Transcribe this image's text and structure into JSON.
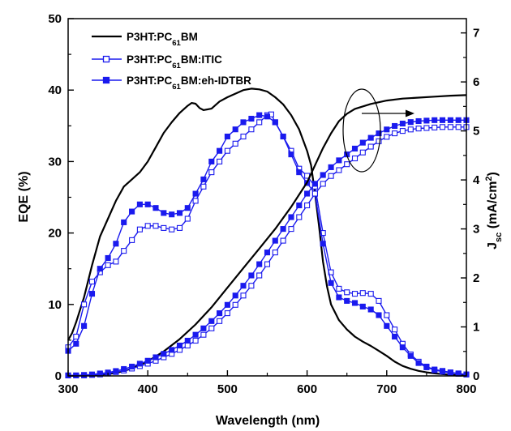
{
  "chart_data": {
    "type": "line",
    "title": "",
    "xlabel": "Wavelength (nm)",
    "ylabel_left": {
      "main": "EQE (%)"
    },
    "ylabel_right": {
      "main": "J",
      "sub": "sc",
      "rest": " (mA/cm",
      "sup": "2",
      "close": ")"
    },
    "xlim": [
      300,
      800
    ],
    "ylim_left": [
      0,
      50
    ],
    "ylim_right": [
      0,
      7.2916
    ],
    "x_ticks": [
      300,
      400,
      500,
      600,
      700,
      800
    ],
    "y_left_ticks": [
      0,
      10,
      20,
      30,
      40,
      50
    ],
    "y_right_ticks": [
      0,
      1,
      2,
      3,
      4,
      5,
      6,
      7
    ],
    "grid": false,
    "legend_position": "top-left",
    "annotations": [
      "ellipse around J curves near 660 nm with arrow pointing right"
    ],
    "legend": [
      {
        "base": "P3HT:PC",
        "sub": "61",
        "rest": "BM"
      },
      {
        "base": "P3HT:PC",
        "sub": "61",
        "rest": "BM:ITIC"
      },
      {
        "base": "P3HT:PC",
        "sub": "61",
        "rest": "BM:eh-IDTBR"
      }
    ],
    "series": [
      {
        "axis": "left",
        "color": "#000000",
        "marker": "none",
        "points": [
          [
            300,
            5.0
          ],
          [
            305,
            6.0
          ],
          [
            310,
            7.5
          ],
          [
            320,
            11.0
          ],
          [
            330,
            15.5
          ],
          [
            340,
            19.5
          ],
          [
            350,
            22.0
          ],
          [
            360,
            24.5
          ],
          [
            370,
            26.5
          ],
          [
            380,
            27.5
          ],
          [
            390,
            28.5
          ],
          [
            400,
            30.0
          ],
          [
            410,
            32.0
          ],
          [
            420,
            34.0
          ],
          [
            430,
            35.5
          ],
          [
            440,
            36.8
          ],
          [
            450,
            37.8
          ],
          [
            455,
            38.2
          ],
          [
            460,
            38.1
          ],
          [
            465,
            37.5
          ],
          [
            470,
            37.2
          ],
          [
            480,
            37.4
          ],
          [
            490,
            38.4
          ],
          [
            500,
            39.0
          ],
          [
            510,
            39.5
          ],
          [
            520,
            40.0
          ],
          [
            530,
            40.2
          ],
          [
            540,
            40.1
          ],
          [
            550,
            39.8
          ],
          [
            560,
            39.0
          ],
          [
            570,
            38.0
          ],
          [
            580,
            36.5
          ],
          [
            590,
            34.5
          ],
          [
            600,
            31.5
          ],
          [
            605,
            29.5
          ],
          [
            610,
            25.5
          ],
          [
            615,
            21.0
          ],
          [
            620,
            16.0
          ],
          [
            625,
            12.5
          ],
          [
            630,
            10.0
          ],
          [
            640,
            7.8
          ],
          [
            650,
            6.5
          ],
          [
            660,
            5.5
          ],
          [
            670,
            4.8
          ],
          [
            680,
            4.2
          ],
          [
            690,
            3.5
          ],
          [
            700,
            2.8
          ],
          [
            710,
            2.0
          ],
          [
            720,
            1.4
          ],
          [
            730,
            1.0
          ],
          [
            740,
            0.7
          ],
          [
            750,
            0.5
          ],
          [
            760,
            0.35
          ],
          [
            770,
            0.25
          ],
          [
            780,
            0.15
          ],
          [
            790,
            0.1
          ],
          [
            800,
            0.05
          ]
        ]
      },
      {
        "axis": "left",
        "color": "#1a1aee",
        "marker": "open-square",
        "points": [
          [
            300,
            4.0
          ],
          [
            310,
            5.5
          ],
          [
            320,
            10.0
          ],
          [
            330,
            13.2
          ],
          [
            340,
            14.5
          ],
          [
            350,
            15.5
          ],
          [
            360,
            16.0
          ],
          [
            370,
            17.5
          ],
          [
            380,
            19.0
          ],
          [
            390,
            20.5
          ],
          [
            400,
            21.0
          ],
          [
            410,
            21.0
          ],
          [
            420,
            20.7
          ],
          [
            430,
            20.5
          ],
          [
            440,
            20.7
          ],
          [
            450,
            22.0
          ],
          [
            460,
            24.5
          ],
          [
            470,
            26.5
          ],
          [
            480,
            28.5
          ],
          [
            490,
            30.0
          ],
          [
            500,
            31.5
          ],
          [
            510,
            32.5
          ],
          [
            520,
            33.5
          ],
          [
            530,
            34.5
          ],
          [
            540,
            35.5
          ],
          [
            550,
            36.5
          ],
          [
            555,
            36.6
          ],
          [
            560,
            35.5
          ],
          [
            570,
            33.5
          ],
          [
            580,
            31.5
          ],
          [
            590,
            29.0
          ],
          [
            600,
            28.0
          ],
          [
            610,
            26.5
          ],
          [
            620,
            20.0
          ],
          [
            630,
            14.5
          ],
          [
            640,
            12.2
          ],
          [
            650,
            11.7
          ],
          [
            660,
            11.5
          ],
          [
            670,
            11.6
          ],
          [
            680,
            11.5
          ],
          [
            690,
            10.5
          ],
          [
            700,
            8.5
          ],
          [
            710,
            6.5
          ],
          [
            720,
            4.5
          ],
          [
            730,
            3.0
          ],
          [
            740,
            2.0
          ],
          [
            750,
            1.3
          ],
          [
            760,
            0.9
          ],
          [
            770,
            0.7
          ],
          [
            780,
            0.5
          ],
          [
            790,
            0.35
          ],
          [
            800,
            0.2
          ]
        ]
      },
      {
        "axis": "left",
        "color": "#1a1aee",
        "marker": "filled-square",
        "points": [
          [
            300,
            3.5
          ],
          [
            310,
            4.5
          ],
          [
            320,
            7.0
          ],
          [
            330,
            11.5
          ],
          [
            340,
            15.0
          ],
          [
            350,
            16.5
          ],
          [
            360,
            18.5
          ],
          [
            370,
            21.5
          ],
          [
            380,
            23.0
          ],
          [
            390,
            24.0
          ],
          [
            400,
            24.0
          ],
          [
            410,
            23.5
          ],
          [
            420,
            22.8
          ],
          [
            430,
            22.6
          ],
          [
            440,
            22.8
          ],
          [
            450,
            23.5
          ],
          [
            460,
            25.5
          ],
          [
            470,
            27.5
          ],
          [
            480,
            30.0
          ],
          [
            490,
            31.5
          ],
          [
            500,
            33.5
          ],
          [
            510,
            34.5
          ],
          [
            520,
            35.5
          ],
          [
            530,
            36.0
          ],
          [
            540,
            36.5
          ],
          [
            550,
            36.3
          ],
          [
            560,
            35.5
          ],
          [
            570,
            33.5
          ],
          [
            580,
            31.0
          ],
          [
            590,
            28.5
          ],
          [
            600,
            27.0
          ],
          [
            610,
            25.5
          ],
          [
            620,
            18.5
          ],
          [
            630,
            13.0
          ],
          [
            640,
            11.0
          ],
          [
            650,
            10.5
          ],
          [
            660,
            10.2
          ],
          [
            670,
            9.7
          ],
          [
            680,
            9.3
          ],
          [
            690,
            8.5
          ],
          [
            700,
            7.0
          ],
          [
            710,
            5.5
          ],
          [
            720,
            4.0
          ],
          [
            730,
            2.8
          ],
          [
            740,
            1.8
          ],
          [
            750,
            1.2
          ],
          [
            760,
            0.8
          ],
          [
            770,
            0.6
          ],
          [
            780,
            0.4
          ],
          [
            790,
            0.3
          ],
          [
            800,
            0.2
          ]
        ]
      },
      {
        "axis": "right",
        "color": "#000000",
        "marker": "none",
        "points": [
          [
            300,
            0.0
          ],
          [
            340,
            0.02
          ],
          [
            360,
            0.06
          ],
          [
            380,
            0.15
          ],
          [
            400,
            0.3
          ],
          [
            420,
            0.5
          ],
          [
            440,
            0.75
          ],
          [
            460,
            1.05
          ],
          [
            480,
            1.4
          ],
          [
            500,
            1.8
          ],
          [
            520,
            2.2
          ],
          [
            540,
            2.6
          ],
          [
            560,
            3.0
          ],
          [
            580,
            3.45
          ],
          [
            600,
            3.95
          ],
          [
            610,
            4.3
          ],
          [
            620,
            4.65
          ],
          [
            630,
            4.95
          ],
          [
            640,
            5.2
          ],
          [
            650,
            5.35
          ],
          [
            660,
            5.45
          ],
          [
            680,
            5.55
          ],
          [
            700,
            5.62
          ],
          [
            720,
            5.66
          ],
          [
            740,
            5.68
          ],
          [
            760,
            5.7
          ],
          [
            780,
            5.72
          ],
          [
            800,
            5.73
          ]
        ]
      },
      {
        "axis": "right",
        "color": "#1a1aee",
        "marker": "open-square",
        "points": [
          [
            300,
            0.01
          ],
          [
            310,
            0.01
          ],
          [
            320,
            0.01
          ],
          [
            330,
            0.02
          ],
          [
            340,
            0.03
          ],
          [
            350,
            0.05
          ],
          [
            360,
            0.08
          ],
          [
            370,
            0.11
          ],
          [
            380,
            0.15
          ],
          [
            390,
            0.2
          ],
          [
            400,
            0.25
          ],
          [
            410,
            0.31
          ],
          [
            420,
            0.38
          ],
          [
            430,
            0.45
          ],
          [
            440,
            0.53
          ],
          [
            450,
            0.62
          ],
          [
            460,
            0.72
          ],
          [
            470,
            0.84
          ],
          [
            480,
            0.97
          ],
          [
            490,
            1.12
          ],
          [
            500,
            1.28
          ],
          [
            510,
            1.45
          ],
          [
            520,
            1.64
          ],
          [
            530,
            1.84
          ],
          [
            540,
            2.05
          ],
          [
            550,
            2.28
          ],
          [
            560,
            2.52
          ],
          [
            570,
            2.76
          ],
          [
            580,
            3.0
          ],
          [
            590,
            3.24
          ],
          [
            600,
            3.48
          ],
          [
            610,
            3.72
          ],
          [
            620,
            3.92
          ],
          [
            630,
            4.08
          ],
          [
            640,
            4.2
          ],
          [
            650,
            4.32
          ],
          [
            660,
            4.44
          ],
          [
            670,
            4.56
          ],
          [
            680,
            4.68
          ],
          [
            690,
            4.79
          ],
          [
            700,
            4.88
          ],
          [
            710,
            4.95
          ],
          [
            720,
            5.0
          ],
          [
            730,
            5.03
          ],
          [
            740,
            5.05
          ],
          [
            750,
            5.06
          ],
          [
            760,
            5.07
          ],
          [
            770,
            5.08
          ],
          [
            780,
            5.08
          ],
          [
            790,
            5.08
          ],
          [
            800,
            5.08
          ]
        ]
      },
      {
        "axis": "right",
        "color": "#1a1aee",
        "marker": "filled-square",
        "points": [
          [
            300,
            0.01
          ],
          [
            310,
            0.01
          ],
          [
            320,
            0.02
          ],
          [
            330,
            0.03
          ],
          [
            340,
            0.05
          ],
          [
            350,
            0.07
          ],
          [
            360,
            0.1
          ],
          [
            370,
            0.14
          ],
          [
            380,
            0.19
          ],
          [
            390,
            0.25
          ],
          [
            400,
            0.31
          ],
          [
            410,
            0.38
          ],
          [
            420,
            0.45
          ],
          [
            430,
            0.53
          ],
          [
            440,
            0.62
          ],
          [
            450,
            0.72
          ],
          [
            460,
            0.84
          ],
          [
            470,
            0.97
          ],
          [
            480,
            1.12
          ],
          [
            490,
            1.28
          ],
          [
            500,
            1.45
          ],
          [
            510,
            1.64
          ],
          [
            520,
            1.84
          ],
          [
            530,
            2.05
          ],
          [
            540,
            2.28
          ],
          [
            550,
            2.52
          ],
          [
            560,
            2.76
          ],
          [
            570,
            3.0
          ],
          [
            580,
            3.24
          ],
          [
            590,
            3.48
          ],
          [
            600,
            3.72
          ],
          [
            610,
            3.92
          ],
          [
            620,
            4.1
          ],
          [
            630,
            4.26
          ],
          [
            640,
            4.4
          ],
          [
            650,
            4.52
          ],
          [
            660,
            4.64
          ],
          [
            670,
            4.76
          ],
          [
            680,
            4.86
          ],
          [
            690,
            4.95
          ],
          [
            700,
            5.03
          ],
          [
            710,
            5.1
          ],
          [
            720,
            5.15
          ],
          [
            730,
            5.18
          ],
          [
            740,
            5.2
          ],
          [
            750,
            5.21
          ],
          [
            760,
            5.22
          ],
          [
            770,
            5.22
          ],
          [
            780,
            5.22
          ],
          [
            790,
            5.22
          ],
          [
            800,
            5.22
          ]
        ]
      }
    ]
  }
}
